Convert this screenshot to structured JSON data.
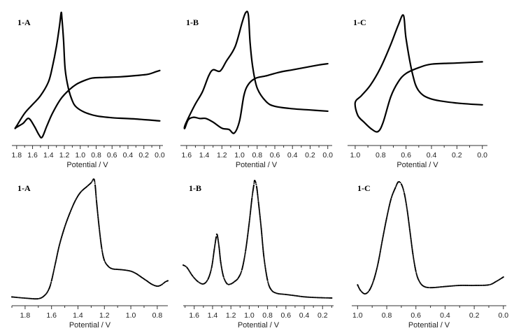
{
  "chart_data": [
    {
      "type": "line",
      "label": "1-A",
      "xlabel": "Potential / V",
      "xlim": [
        1.86,
        -0.04
      ],
      "x_reversed": true,
      "ticks": [
        "1.8",
        "1.6",
        "1.4",
        "1.2",
        "1.0",
        "0.8",
        "0.6",
        "0.4",
        "0.2",
        "0.0"
      ],
      "ylim": [
        0,
        100
      ],
      "y_hidden": true,
      "series": [
        {
          "values": [
            [
              0.0,
              86
            ],
            [
              0.3,
              84.5
            ],
            [
              0.6,
              83.5
            ],
            [
              0.8,
              82
            ],
            [
              0.95,
              79
            ],
            [
              1.05,
              75
            ],
            [
              1.1,
              70
            ],
            [
              1.15,
              60
            ],
            [
              1.19,
              45
            ],
            [
              1.21,
              22
            ],
            [
              1.23,
              5
            ],
            [
              1.24,
              0
            ],
            [
              1.26,
              10
            ],
            [
              1.3,
              27
            ],
            [
              1.35,
              43
            ],
            [
              1.4,
              55
            ],
            [
              1.5,
              66
            ],
            [
              1.6,
              73
            ],
            [
              1.7,
              80
            ],
            [
              1.8,
              90
            ],
            [
              1.82,
              92
            ],
            [
              1.8,
              91
            ],
            [
              1.72,
              88
            ],
            [
              1.65,
              84
            ],
            [
              1.58,
              90
            ],
            [
              1.52,
              97
            ],
            [
              1.48,
              99
            ],
            [
              1.42,
              90
            ],
            [
              1.35,
              80
            ],
            [
              1.25,
              69
            ],
            [
              1.15,
              62
            ],
            [
              1.05,
              57
            ],
            [
              0.95,
              54
            ],
            [
              0.85,
              52
            ],
            [
              0.7,
              51.5
            ],
            [
              0.5,
              51
            ],
            [
              0.3,
              50
            ],
            [
              0.15,
              49
            ],
            [
              0.05,
              47
            ],
            [
              0.0,
              46
            ]
          ]
        }
      ]
    },
    {
      "type": "line",
      "label": "1-B",
      "xlabel": "Potential / V",
      "xlim": [
        1.67,
        -0.05
      ],
      "x_reversed": true,
      "ticks": [
        "1.6",
        "1.4",
        "1.2",
        "1.0",
        "0.8",
        "0.6",
        "0.4",
        "0.2",
        "0.0"
      ],
      "ylim": [
        0,
        100
      ],
      "y_hidden": true,
      "series": [
        {
          "values": [
            [
              0.0,
              81
            ],
            [
              0.2,
              80
            ],
            [
              0.4,
              79
            ],
            [
              0.6,
              77
            ],
            [
              0.7,
              73
            ],
            [
              0.8,
              62
            ],
            [
              0.85,
              45
            ],
            [
              0.88,
              25
            ],
            [
              0.9,
              2
            ],
            [
              0.93,
              0
            ],
            [
              0.97,
              8
            ],
            [
              1.05,
              28
            ],
            [
              1.15,
              40
            ],
            [
              1.22,
              48
            ],
            [
              1.3,
              47
            ],
            [
              1.35,
              52
            ],
            [
              1.42,
              65
            ],
            [
              1.5,
              75
            ],
            [
              1.57,
              85
            ],
            [
              1.62,
              93
            ],
            [
              1.62,
              95
            ],
            [
              1.58,
              88
            ],
            [
              1.52,
              86
            ],
            [
              1.45,
              87
            ],
            [
              1.38,
              87
            ],
            [
              1.3,
              90
            ],
            [
              1.2,
              95
            ],
            [
              1.12,
              96
            ],
            [
              1.06,
              99
            ],
            [
              1.0,
              89
            ],
            [
              0.95,
              68
            ],
            [
              0.9,
              59
            ],
            [
              0.82,
              54
            ],
            [
              0.7,
              52
            ],
            [
              0.55,
              49
            ],
            [
              0.4,
              47
            ],
            [
              0.25,
              45
            ],
            [
              0.1,
              43
            ],
            [
              0.0,
              42
            ]
          ]
        }
      ]
    },
    {
      "type": "line",
      "label": "1-C",
      "xlabel": "Potential / V",
      "xlim": [
        1.06,
        -0.04
      ],
      "x_reversed": true,
      "ticks": [
        "1.0",
        "0.8",
        "0.6",
        "0.4",
        "0.2",
        "0.0"
      ],
      "ylim": [
        0,
        100
      ],
      "y_hidden": true,
      "series": [
        {
          "values": [
            [
              0.0,
              77
            ],
            [
              0.2,
              75.5
            ],
            [
              0.4,
              72
            ],
            [
              0.5,
              65
            ],
            [
              0.55,
              50
            ],
            [
              0.6,
              20
            ],
            [
              0.62,
              0
            ],
            [
              0.66,
              8
            ],
            [
              0.72,
              25
            ],
            [
              0.8,
              45
            ],
            [
              0.88,
              60
            ],
            [
              0.95,
              69
            ],
            [
              1.0,
              75
            ],
            [
              0.98,
              86
            ],
            [
              0.93,
              92
            ],
            [
              0.87,
              98
            ],
            [
              0.82,
              100
            ],
            [
              0.78,
              92
            ],
            [
              0.72,
              70
            ],
            [
              0.66,
              57
            ],
            [
              0.6,
              50
            ],
            [
              0.5,
              45
            ],
            [
              0.4,
              42
            ],
            [
              0.2,
              41
            ],
            [
              0.0,
              40
            ]
          ]
        }
      ]
    },
    {
      "type": "scatter",
      "label": "1-A",
      "xlabel": "Potential / V",
      "xlim": [
        1.9,
        0.72
      ],
      "x_reversed": true,
      "ticks": [
        "1.8",
        "1.6",
        "1.4",
        "1.2",
        "1.0",
        "0.8"
      ],
      "ylim": [
        0,
        100
      ],
      "y_hidden": true,
      "series": [
        {
          "values": [
            [
              1.9,
              1.5
            ],
            [
              1.8,
              0.5
            ],
            [
              1.7,
              0
            ],
            [
              1.65,
              3
            ],
            [
              1.62,
              8
            ],
            [
              1.6,
              15
            ],
            [
              1.57,
              30
            ],
            [
              1.54,
              45
            ],
            [
              1.5,
              60
            ],
            [
              1.46,
              72
            ],
            [
              1.42,
              82
            ],
            [
              1.38,
              89
            ],
            [
              1.33,
              94
            ],
            [
              1.3,
              97
            ],
            [
              1.28,
              100
            ],
            [
              1.27,
              95
            ],
            [
              1.26,
              82
            ],
            [
              1.24,
              60
            ],
            [
              1.22,
              42
            ],
            [
              1.2,
              32
            ],
            [
              1.17,
              27
            ],
            [
              1.14,
              25
            ],
            [
              1.1,
              24.5
            ],
            [
              1.05,
              24
            ],
            [
              1.0,
              23
            ],
            [
              0.96,
              21
            ],
            [
              0.92,
              18
            ],
            [
              0.88,
              15
            ],
            [
              0.84,
              12
            ],
            [
              0.8,
              10.5
            ],
            [
              0.77,
              11.5
            ],
            [
              0.74,
              14
            ],
            [
              0.72,
              15
            ]
          ]
        }
      ]
    },
    {
      "type": "scatter",
      "label": "1-B",
      "xlabel": "Potential / V",
      "xlim": [
        1.72,
        0.08
      ],
      "x_reversed": true,
      "ticks": [
        "1.6",
        "1.4",
        "1.2",
        "1.0",
        "0.8",
        "0.6",
        "0.4",
        "0.2"
      ],
      "ylim": [
        0,
        100
      ],
      "y_hidden": true,
      "series": [
        {
          "values": [
            [
              1.72,
              28
            ],
            [
              1.68,
              26
            ],
            [
              1.62,
              19
            ],
            [
              1.56,
              14
            ],
            [
              1.5,
              12
            ],
            [
              1.45,
              16
            ],
            [
              1.41,
              26
            ],
            [
              1.38,
              42
            ],
            [
              1.36,
              52
            ],
            [
              1.35,
              54
            ],
            [
              1.33,
              44
            ],
            [
              1.31,
              30
            ],
            [
              1.28,
              18
            ],
            [
              1.24,
              12
            ],
            [
              1.2,
              12
            ],
            [
              1.16,
              14
            ],
            [
              1.12,
              17
            ],
            [
              1.08,
              24
            ],
            [
              1.04,
              40
            ],
            [
              1.0,
              64
            ],
            [
              0.97,
              85
            ],
            [
              0.95,
              96
            ],
            [
              0.94,
              100
            ],
            [
              0.92,
              95
            ],
            [
              0.9,
              82
            ],
            [
              0.87,
              60
            ],
            [
              0.84,
              35
            ],
            [
              0.8,
              15
            ],
            [
              0.76,
              7
            ],
            [
              0.7,
              4
            ],
            [
              0.6,
              3
            ],
            [
              0.5,
              2
            ],
            [
              0.4,
              1
            ],
            [
              0.3,
              0.5
            ],
            [
              0.2,
              0.2
            ],
            [
              0.1,
              0
            ]
          ]
        }
      ]
    },
    {
      "type": "scatter",
      "label": "1-C",
      "xlabel": "Potential / V",
      "xlim": [
        1.04,
        -0.02
      ],
      "x_reversed": true,
      "ticks": [
        "1.0",
        "0.8",
        "0.6",
        "0.4",
        "0.2",
        "0.0"
      ],
      "ylim": [
        0,
        100
      ],
      "y_hidden": true,
      "series": [
        {
          "values": [
            [
              1.0,
              8
            ],
            [
              0.98,
              3
            ],
            [
              0.95,
              0
            ],
            [
              0.92,
              3
            ],
            [
              0.89,
              12
            ],
            [
              0.86,
              27
            ],
            [
              0.83,
              48
            ],
            [
              0.8,
              68
            ],
            [
              0.77,
              85
            ],
            [
              0.74,
              95
            ],
            [
              0.72,
              100
            ],
            [
              0.7,
              98
            ],
            [
              0.68,
              90
            ],
            [
              0.66,
              75
            ],
            [
              0.64,
              55
            ],
            [
              0.62,
              35
            ],
            [
              0.6,
              20
            ],
            [
              0.58,
              12
            ],
            [
              0.55,
              7
            ],
            [
              0.5,
              5.5
            ],
            [
              0.4,
              6.5
            ],
            [
              0.3,
              7.5
            ],
            [
              0.2,
              7.5
            ],
            [
              0.1,
              8
            ],
            [
              0.05,
              11
            ],
            [
              0.0,
              15
            ]
          ]
        }
      ]
    }
  ]
}
